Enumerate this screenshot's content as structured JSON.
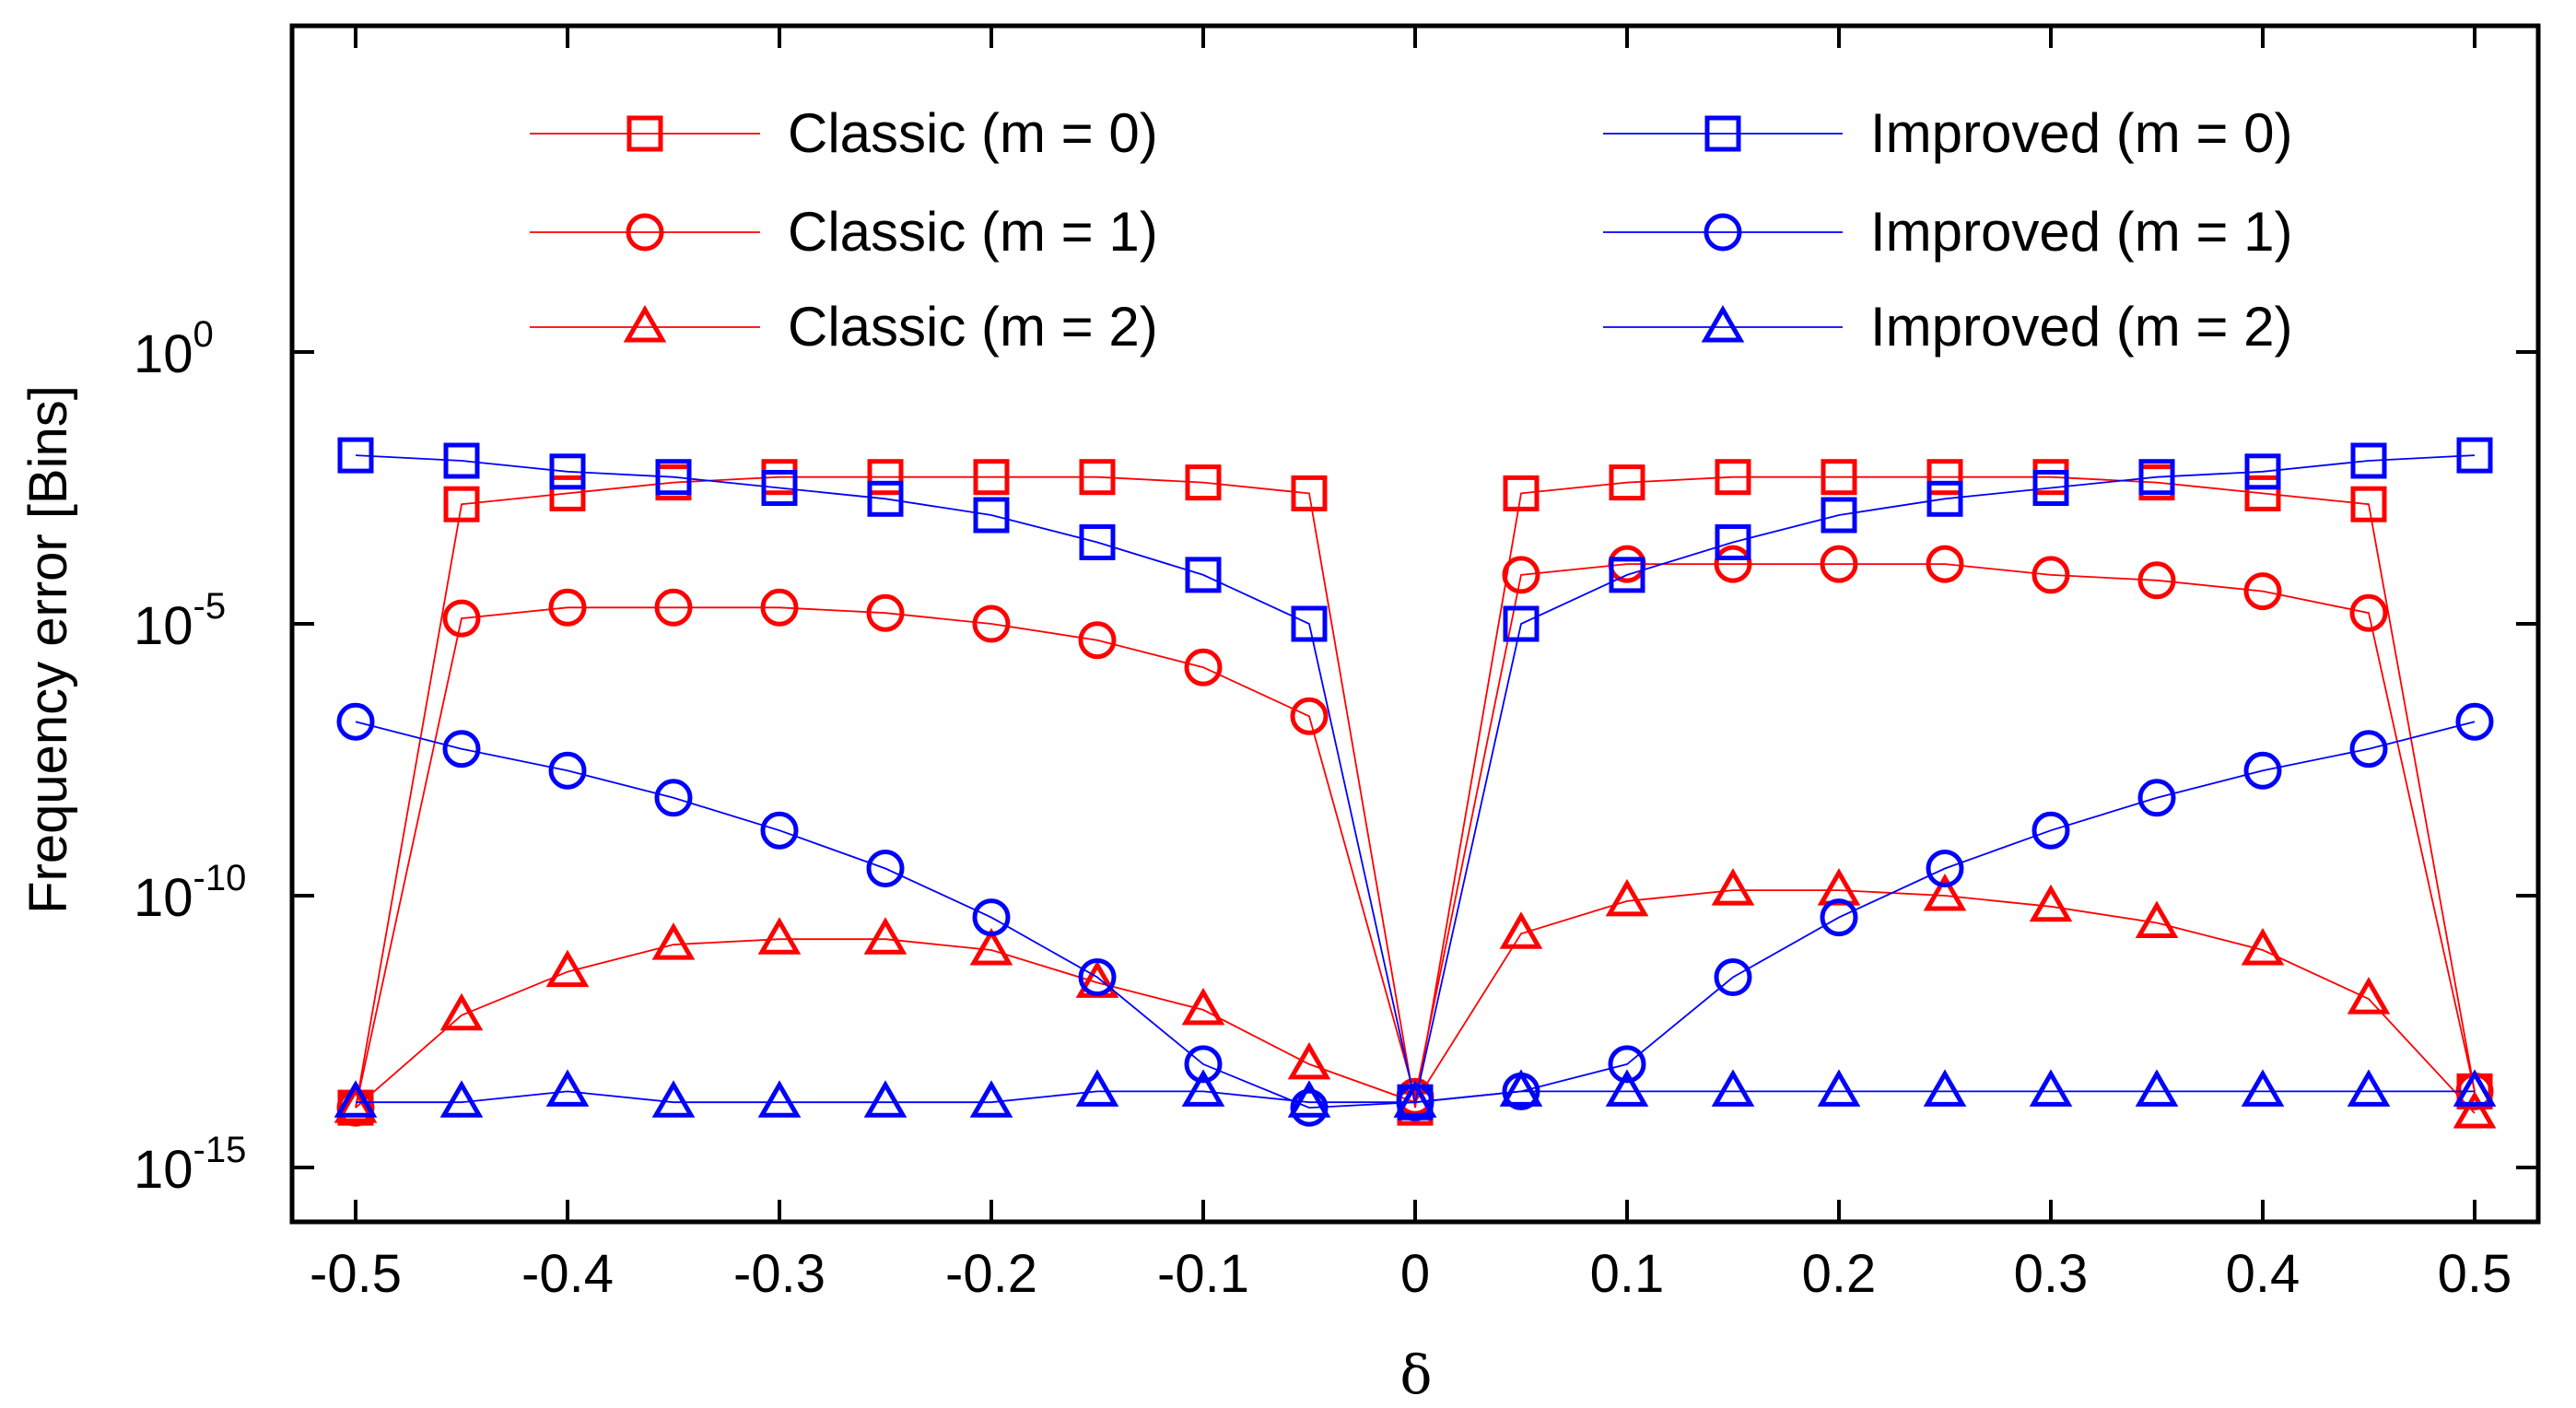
{
  "chart_data": {
    "type": "line",
    "xlabel": "δ",
    "ylabel": "Frequency error [Bins]",
    "y_scale": "log10",
    "xlim": [
      -0.53,
      0.53
    ],
    "ylim_exponent": [
      -16,
      6
    ],
    "x_ticks": [
      -0.5,
      -0.4,
      -0.3,
      -0.2,
      -0.1,
      0,
      0.1,
      0.2,
      0.3,
      0.4,
      0.5
    ],
    "x_tick_labels": [
      "-0.5",
      "-0.4",
      "-0.3",
      "-0.2",
      "-0.1",
      "0",
      "0.1",
      "0.2",
      "0.3",
      "0.4",
      "0.5"
    ],
    "y_tick_exponents": [
      0,
      -5,
      -10,
      -15
    ],
    "y_tick_base": "10",
    "y_tick_exponent_labels": [
      "0",
      "-5",
      "-10",
      "-15"
    ],
    "legend_position": "top",
    "x": [
      -0.5,
      -0.45,
      -0.4,
      -0.35,
      -0.3,
      -0.25,
      -0.2,
      -0.15,
      -0.1,
      -0.05,
      0,
      0.05,
      0.1,
      0.15,
      0.2,
      0.25,
      0.3,
      0.35,
      0.4,
      0.45,
      0.5
    ],
    "series": [
      {
        "name": "Classic (m = 0)",
        "color": "#ff0000",
        "marker": "square",
        "log10_values": [
          -13.9,
          -2.8,
          -2.6,
          -2.4,
          -2.3,
          -2.3,
          -2.3,
          -2.3,
          -2.4,
          -2.6,
          -13.9,
          -2.6,
          -2.4,
          -2.3,
          -2.3,
          -2.3,
          -2.3,
          -2.4,
          -2.6,
          -2.8,
          -13.6
        ]
      },
      {
        "name": "Classic (m = 1)",
        "color": "#ff0000",
        "marker": "circle",
        "log10_values": [
          -13.9,
          -4.9,
          -4.7,
          -4.7,
          -4.7,
          -4.8,
          -5.0,
          -5.3,
          -5.8,
          -6.7,
          -13.7,
          -4.1,
          -3.9,
          -3.9,
          -3.9,
          -3.9,
          -4.1,
          -4.2,
          -4.4,
          -4.8,
          -13.6
        ]
      },
      {
        "name": "Classic (m = 2)",
        "color": "#ff0000",
        "marker": "triangle",
        "log10_values": [
          -13.9,
          -12.2,
          -11.4,
          -10.9,
          -10.8,
          -10.8,
          -11.0,
          -11.6,
          -12.1,
          -13.1,
          -13.8,
          -10.7,
          -10.1,
          -9.9,
          -9.9,
          -10.0,
          -10.2,
          -10.5,
          -11.0,
          -11.9,
          -14.0
        ]
      },
      {
        "name": "Improved (m = 0)",
        "color": "#0000ff",
        "marker": "square",
        "log10_values": [
          -1.9,
          -2.0,
          -2.2,
          -2.3,
          -2.5,
          -2.7,
          -3.0,
          -3.5,
          -4.1,
          -5.0,
          -13.8,
          -5.0,
          -4.1,
          -3.5,
          -3.0,
          -2.7,
          -2.5,
          -2.3,
          -2.2,
          -2.0,
          -1.9
        ]
      },
      {
        "name": "Improved (m = 1)",
        "color": "#0000ff",
        "marker": "circle",
        "log10_values": [
          -6.8,
          -7.3,
          -7.7,
          -8.2,
          -8.8,
          -9.5,
          -10.4,
          -11.5,
          -13.1,
          -13.9,
          -13.8,
          -13.6,
          -13.1,
          -11.5,
          -10.4,
          -9.5,
          -8.8,
          -8.2,
          -7.7,
          -7.3,
          -6.8
        ]
      },
      {
        "name": "Improved (m = 2)",
        "color": "#0000ff",
        "marker": "triangle",
        "log10_values": [
          -13.8,
          -13.8,
          -13.6,
          -13.8,
          -13.8,
          -13.8,
          -13.8,
          -13.6,
          -13.6,
          -13.8,
          -13.8,
          -13.6,
          -13.6,
          -13.6,
          -13.6,
          -13.6,
          -13.6,
          -13.6,
          -13.6,
          -13.6,
          -13.6
        ]
      }
    ]
  }
}
